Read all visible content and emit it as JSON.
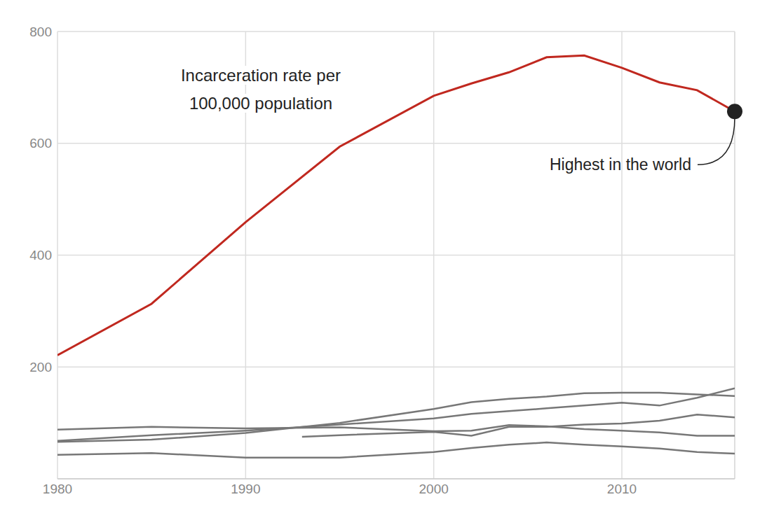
{
  "chart_data": {
    "type": "line",
    "title": [
      "Incarceration rate per",
      "100,000 population"
    ],
    "x": [
      1980,
      1985,
      1990,
      1995,
      2000,
      2002,
      2004,
      2006,
      2008,
      2010,
      2012,
      2014,
      2016
    ],
    "series": [
      {
        "color": "#c0281f",
        "values": [
          221,
          313,
          459,
          594,
          685,
          707,
          727,
          754,
          757,
          735,
          709,
          695,
          657
        ]
      },
      {
        "color": "#777777",
        "values": [
          66,
          70,
          82,
          100,
          125,
          137,
          143,
          147,
          153,
          154,
          154,
          151,
          148
        ]
      },
      {
        "color": "#777777",
        "values": [
          68,
          78,
          86,
          97,
          108,
          116,
          121,
          126,
          131,
          136,
          131,
          145,
          162
        ]
      },
      {
        "color": "#777777",
        "values": [
          88,
          93,
          90,
          92,
          85,
          86,
          96,
          94,
          89,
          86,
          83,
          77,
          77
        ]
      },
      {
        "color": "#777777",
        "x": [
          1993,
          1995,
          2000,
          2002,
          2004,
          2006,
          2008,
          2010,
          2012,
          2014,
          2016
        ],
        "values": [
          75,
          78,
          84,
          77,
          93,
          93,
          97,
          99,
          104,
          115,
          110
        ]
      },
      {
        "color": "#777777",
        "values": [
          43,
          46,
          38,
          38,
          48,
          55,
          61,
          65,
          61,
          58,
          54,
          48,
          45
        ]
      }
    ],
    "xlim": [
      1980,
      2016
    ],
    "xticks": [
      1980,
      1990,
      2000,
      2010
    ],
    "ylim": [
      0,
      800
    ],
    "yticks": [
      200,
      400,
      600,
      800
    ],
    "grid": true,
    "annotations": [
      {
        "text": "Highest in the world",
        "x": 2016,
        "y": 657
      }
    ]
  }
}
